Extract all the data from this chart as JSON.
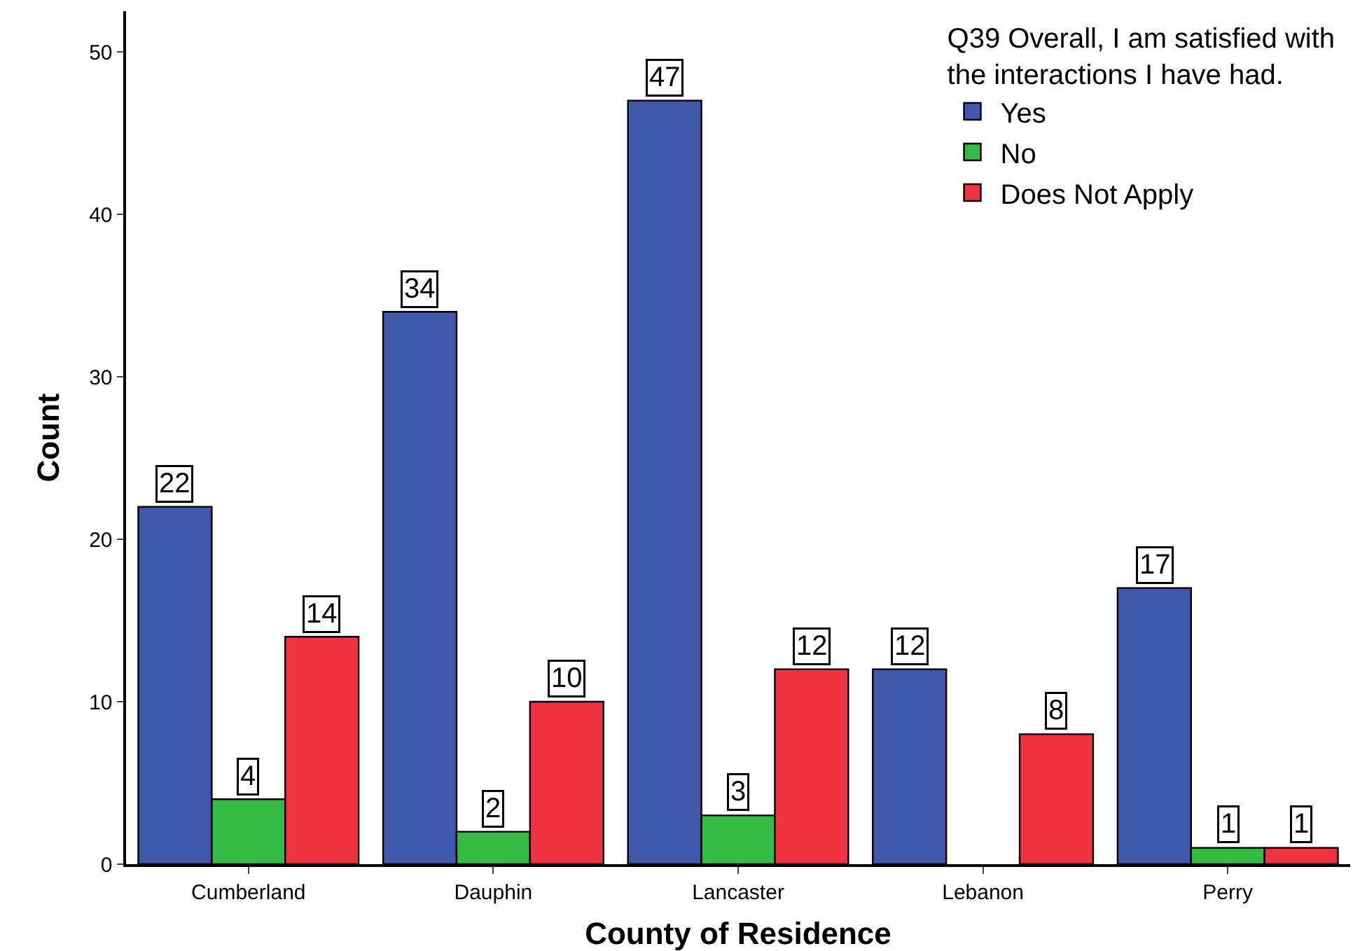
{
  "chart_data": {
    "type": "bar",
    "xlabel": "County of Residence",
    "ylabel": "Count",
    "legend_title": "Q39 Overall, I am satisfied with the interactions I have had.",
    "categories": [
      "Cumberland",
      "Dauphin",
      "Lancaster",
      "Lebanon",
      "Perry"
    ],
    "series": [
      {
        "name": "Yes",
        "color": "#3f58aa",
        "values": [
          22,
          34,
          47,
          12,
          17
        ]
      },
      {
        "name": "No",
        "color": "#33bb44",
        "values": [
          4,
          2,
          3,
          null,
          1
        ]
      },
      {
        "name": "Does Not Apply",
        "color": "#ef3340",
        "values": [
          14,
          10,
          12,
          8,
          1
        ]
      }
    ],
    "ylim": [
      0,
      52.5
    ],
    "yticks": [
      0,
      10,
      20,
      30,
      40,
      50
    ],
    "legend": "top right",
    "data_labels": true
  }
}
